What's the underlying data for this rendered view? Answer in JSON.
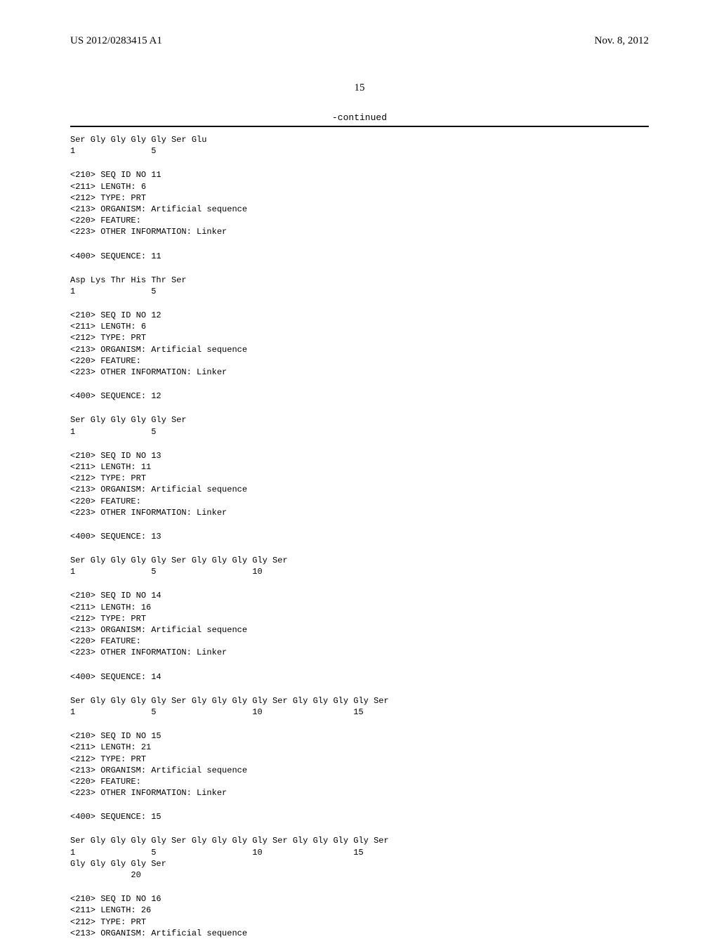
{
  "header": {
    "pub_no": "US 2012/0283415 A1",
    "date": "Nov. 8, 2012"
  },
  "page_number": "15",
  "continued_label": "-continued",
  "top_fragment": {
    "residues": "Ser Gly Gly Gly Gly Ser Glu",
    "numbers": "1               5"
  },
  "entries": [
    {
      "id": "11",
      "length": "6",
      "type": "PRT",
      "organism": "Artificial sequence",
      "feature": "",
      "other_info": "Linker",
      "sequence_lines": [
        {
          "residues": "Asp Lys Thr His Thr Ser",
          "numbers": "1               5"
        }
      ]
    },
    {
      "id": "12",
      "length": "6",
      "type": "PRT",
      "organism": "Artificial sequence",
      "feature": "",
      "other_info": "Linker",
      "sequence_lines": [
        {
          "residues": "Ser Gly Gly Gly Gly Ser",
          "numbers": "1               5"
        }
      ]
    },
    {
      "id": "13",
      "length": "11",
      "type": "PRT",
      "organism": "Artificial sequence",
      "feature": "",
      "other_info": "Linker",
      "sequence_lines": [
        {
          "residues": "Ser Gly Gly Gly Gly Ser Gly Gly Gly Gly Ser",
          "numbers": "1               5                   10"
        }
      ]
    },
    {
      "id": "14",
      "length": "16",
      "type": "PRT",
      "organism": "Artificial sequence",
      "feature": "",
      "other_info": "Linker",
      "sequence_lines": [
        {
          "residues": "Ser Gly Gly Gly Gly Ser Gly Gly Gly Gly Ser Gly Gly Gly Gly Ser",
          "numbers": "1               5                   10                  15"
        }
      ]
    },
    {
      "id": "15",
      "length": "21",
      "type": "PRT",
      "organism": "Artificial sequence",
      "feature": "",
      "other_info": "Linker",
      "sequence_lines": [
        {
          "residues": "Ser Gly Gly Gly Gly Ser Gly Gly Gly Gly Ser Gly Gly Gly Gly Ser",
          "numbers": "1               5                   10                  15"
        },
        {
          "residues": "Gly Gly Gly Gly Ser",
          "numbers": "            20"
        }
      ]
    }
  ],
  "trailing_header": {
    "id": "16",
    "length": "26",
    "type": "PRT",
    "organism": "Artificial sequence"
  },
  "labels": {
    "seq_id": "<210> SEQ ID NO ",
    "length": "<211> LENGTH: ",
    "type": "<212> TYPE: ",
    "organism": "<213> ORGANISM: ",
    "feature": "<220> FEATURE:",
    "other_info": "<223> OTHER INFORMATION: ",
    "sequence": "<400> SEQUENCE: "
  }
}
